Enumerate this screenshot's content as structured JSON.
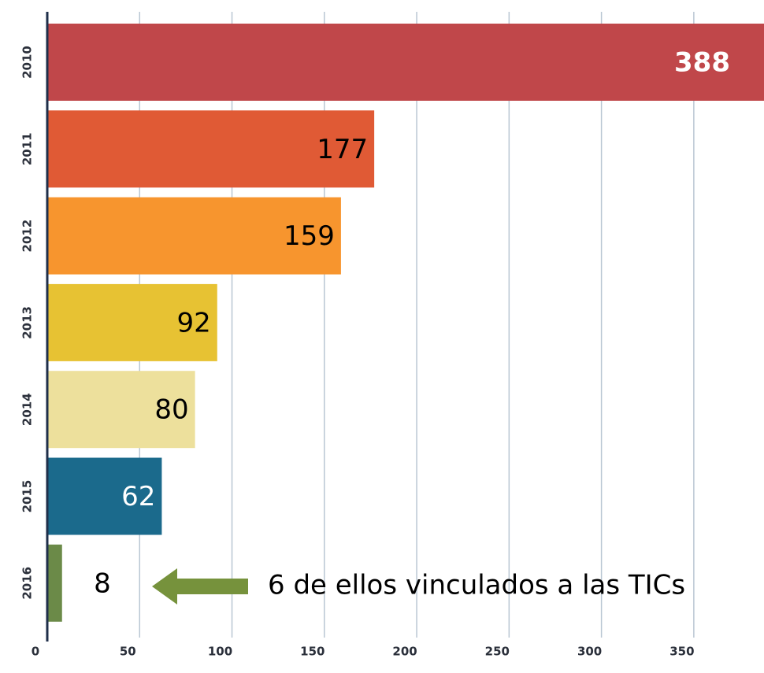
{
  "chart_data": {
    "type": "barh",
    "categories": [
      "2010",
      "2011",
      "2012",
      "2013",
      "2014",
      "2015",
      "2016"
    ],
    "values": [
      388,
      177,
      159,
      92,
      80,
      62,
      8
    ],
    "colors": [
      "#c0474a",
      "#e05a35",
      "#f7952e",
      "#e7c233",
      "#ede09c",
      "#1b6a8c",
      "#6b8a48"
    ],
    "label_colors": [
      "#ffffff",
      "#000000",
      "#000000",
      "#000000",
      "#000000",
      "#ffffff",
      "#000000"
    ],
    "xlim": [
      0,
      388
    ],
    "xticks": [
      0,
      50,
      100,
      150,
      200,
      250,
      300,
      350
    ],
    "grid": true,
    "annotation": "6 de ellos vinculados a las TICs"
  }
}
